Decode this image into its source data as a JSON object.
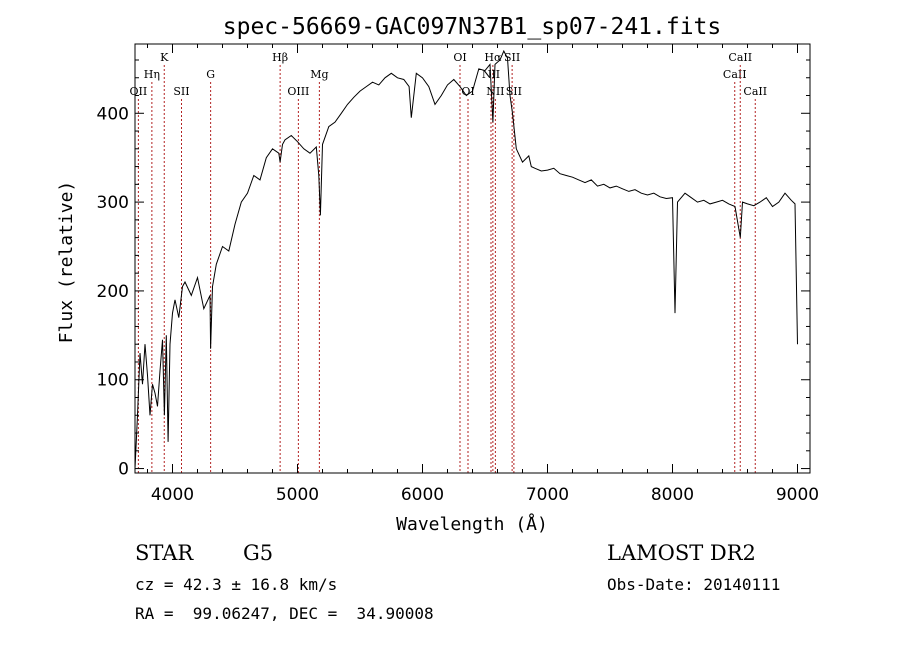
{
  "chart_data": {
    "type": "line",
    "title": "spec-56669-GAC097N37B1_sp07-241.fits",
    "xlabel": "Wavelength (Å)",
    "ylabel": "Flux (relative)",
    "xlim": [
      3700,
      9100
    ],
    "ylim": [
      -5,
      478
    ],
    "x_ticks": [
      4000,
      5000,
      6000,
      7000,
      8000,
      9000
    ],
    "x_tick_labels": [
      "4000",
      "5000",
      "6000",
      "7000",
      "8000",
      "9000"
    ],
    "y_ticks": [
      0,
      100,
      200,
      300,
      400
    ],
    "y_tick_labels": [
      "0",
      "100",
      "200",
      "300",
      "400"
    ],
    "grid": false,
    "series": [
      {
        "color": "#000000",
        "x": [
          3700,
          3720,
          3740,
          3760,
          3780,
          3800,
          3820,
          3840,
          3860,
          3880,
          3900,
          3920,
          3935,
          3950,
          3965,
          3980,
          4000,
          4020,
          4050,
          4080,
          4100,
          4150,
          4200,
          4250,
          4300,
          4305,
          4320,
          4350,
          4400,
          4450,
          4500,
          4550,
          4600,
          4650,
          4700,
          4750,
          4800,
          4850,
          4861,
          4880,
          4900,
          4950,
          5000,
          5050,
          5100,
          5150,
          5170,
          5183,
          5200,
          5250,
          5300,
          5350,
          5400,
          5450,
          5500,
          5550,
          5600,
          5650,
          5700,
          5750,
          5800,
          5850,
          5893,
          5910,
          5950,
          6000,
          6050,
          6100,
          6150,
          6200,
          6250,
          6300,
          6350,
          6400,
          6450,
          6500,
          6540,
          6563,
          6580,
          6620,
          6650,
          6680,
          6700,
          6720,
          6750,
          6800,
          6850,
          6870,
          6900,
          6950,
          7000,
          7050,
          7100,
          7150,
          7200,
          7250,
          7300,
          7350,
          7400,
          7450,
          7500,
          7550,
          7600,
          7650,
          7700,
          7750,
          7800,
          7850,
          7900,
          7950,
          8000,
          8020,
          8040,
          8100,
          8150,
          8200,
          8250,
          8300,
          8350,
          8400,
          8450,
          8500,
          8542,
          8560,
          8600,
          8650,
          8700,
          8750,
          8800,
          8850,
          8900,
          8950,
          8980,
          9000
        ],
        "y": [
          0,
          60,
          130,
          95,
          140,
          105,
          60,
          95,
          85,
          70,
          110,
          145,
          60,
          150,
          30,
          140,
          175,
          190,
          170,
          205,
          210,
          195,
          215,
          180,
          195,
          135,
          205,
          230,
          250,
          245,
          275,
          300,
          310,
          330,
          325,
          350,
          360,
          355,
          345,
          365,
          370,
          375,
          368,
          360,
          355,
          362,
          330,
          285,
          365,
          385,
          390,
          400,
          410,
          418,
          425,
          430,
          435,
          432,
          440,
          445,
          440,
          438,
          430,
          395,
          445,
          440,
          430,
          410,
          420,
          432,
          438,
          430,
          420,
          425,
          450,
          448,
          455,
          390,
          455,
          460,
          470,
          462,
          420,
          400,
          360,
          345,
          352,
          340,
          338,
          335,
          336,
          338,
          332,
          330,
          328,
          325,
          322,
          325,
          318,
          320,
          316,
          318,
          315,
          312,
          314,
          310,
          308,
          310,
          306,
          304,
          305,
          175,
          300,
          310,
          305,
          300,
          302,
          298,
          300,
          302,
          298,
          295,
          260,
          300,
          298,
          296,
          300,
          305,
          295,
          300,
          310,
          302,
          298,
          140
        ]
      }
    ],
    "line_marks": [
      {
        "label": "OII",
        "x": 3727,
        "row": 3
      },
      {
        "label": "Hη",
        "x": 3835,
        "row": 2
      },
      {
        "label": "K",
        "x": 3934,
        "row": 1
      },
      {
        "label": "SII",
        "x": 4072,
        "row": 3
      },
      {
        "label": "G",
        "x": 4305,
        "row": 2
      },
      {
        "label": "Hβ",
        "x": 4861,
        "row": 1
      },
      {
        "label": "OIII",
        "x": 5007,
        "row": 3
      },
      {
        "label": "Mg",
        "x": 5175,
        "row": 2
      },
      {
        "label": "OI",
        "x": 6300,
        "row": 1
      },
      {
        "label": "OI",
        "x": 6364,
        "row": 3
      },
      {
        "label": "Hα",
        "x": 6563,
        "row": 1
      },
      {
        "label": "NII",
        "x": 6548,
        "row": 2
      },
      {
        "label": "NII",
        "x": 6583,
        "row": 3
      },
      {
        "label": "SII",
        "x": 6717,
        "row": 1
      },
      {
        "label": "SII",
        "x": 6731,
        "row": 3
      },
      {
        "label": "CaII",
        "x": 8498,
        "row": 2
      },
      {
        "label": "CaII",
        "x": 8542,
        "row": 1
      },
      {
        "label": "CaII",
        "x": 8662,
        "row": 3
      }
    ],
    "line_mark_color": "#b22222"
  },
  "info": {
    "object_type": "STAR",
    "subclass": "G5",
    "survey": "LAMOST DR2",
    "velocity": "cz = 42.3 ± 16.8 km/s",
    "obs_date": "Obs-Date: 20140111",
    "coords": "RA =  99.06247, DEC =  34.90008"
  }
}
